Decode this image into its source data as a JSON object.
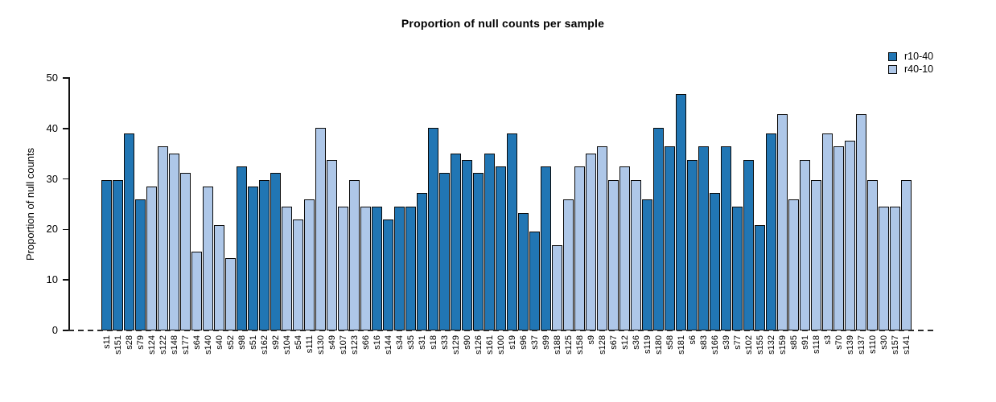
{
  "title": "Proportion of null counts per sample",
  "y_axis": {
    "label": "Proportion of null counts"
  },
  "legend": {
    "items": [
      {
        "label": "r10-40",
        "color": "#2176b4"
      },
      {
        "label": "r40-10",
        "color": "#aec7e8"
      }
    ]
  },
  "chart_data": {
    "type": "bar",
    "title": "Proportion of null counts per sample",
    "xlabel": "",
    "ylabel": "Proportion of null counts",
    "ylim": [
      0,
      50
    ],
    "yticks": [
      0,
      10,
      20,
      30,
      40,
      50
    ],
    "grid": false,
    "legend_position": "top-right",
    "baseline": {
      "y": 0,
      "style": "dashed"
    },
    "series": [
      {
        "name": "r10-40",
        "color": "#2176b4"
      },
      {
        "name": "r40-10",
        "color": "#aec7e8"
      }
    ],
    "categories": [
      "s11",
      "s151",
      "s28",
      "s79",
      "s124",
      "s122",
      "s148",
      "s177",
      "s64",
      "s140",
      "s40",
      "s52",
      "s98",
      "s51",
      "s162",
      "s92",
      "s104",
      "s54",
      "s111",
      "s130",
      "s49",
      "s107",
      "s123",
      "s66",
      "s16",
      "s144",
      "s34",
      "s35",
      "s31",
      "s18",
      "s33",
      "s129",
      "s90",
      "s126",
      "s161",
      "s100",
      "s19",
      "s96",
      "s37",
      "s99",
      "s188",
      "s125",
      "s158",
      "s9",
      "s128",
      "s67",
      "s12",
      "s36",
      "s119",
      "s180",
      "s58",
      "s181",
      "s6",
      "s83",
      "s166",
      "s39",
      "s77",
      "s102",
      "s155",
      "s132",
      "s159",
      "s85",
      "s91",
      "s118",
      "s3",
      "s70",
      "s139",
      "s137",
      "s110",
      "s30",
      "s157",
      "s141"
    ],
    "values": [
      29.8,
      29.8,
      39.0,
      25.9,
      28.5,
      36.4,
      35.0,
      31.2,
      15.6,
      28.5,
      20.8,
      14.3,
      32.5,
      28.5,
      29.8,
      31.2,
      24.5,
      22.0,
      26.0,
      40.2,
      33.8,
      24.5,
      29.8,
      24.5,
      24.5,
      22.0,
      24.5,
      24.5,
      27.3,
      40.2,
      31.2,
      35.0,
      33.7,
      31.2,
      35.0,
      32.5,
      39.0,
      23.3,
      19.6,
      32.5,
      16.9,
      26.0,
      32.5,
      35.0,
      36.4,
      29.8,
      32.5,
      29.8,
      26.0,
      40.2,
      36.4,
      46.8,
      33.7,
      36.4,
      27.3,
      36.4,
      24.5,
      33.7,
      20.8,
      39.0,
      42.8,
      26.0,
      33.7,
      29.8,
      39.0,
      36.4,
      37.6,
      42.8,
      29.8,
      24.5,
      24.5,
      29.8
    ],
    "bar_series": [
      "r10-40",
      "r10-40",
      "r10-40",
      "r10-40",
      "r40-10",
      "r40-10",
      "r40-10",
      "r40-10",
      "r40-10",
      "r40-10",
      "r40-10",
      "r40-10",
      "r10-40",
      "r10-40",
      "r10-40",
      "r10-40",
      "r40-10",
      "r40-10",
      "r40-10",
      "r40-10",
      "r40-10",
      "r40-10",
      "r40-10",
      "r40-10",
      "r10-40",
      "r10-40",
      "r10-40",
      "r10-40",
      "r10-40",
      "r10-40",
      "r10-40",
      "r10-40",
      "r10-40",
      "r10-40",
      "r10-40",
      "r10-40",
      "r10-40",
      "r10-40",
      "r10-40",
      "r10-40",
      "r40-10",
      "r40-10",
      "r40-10",
      "r40-10",
      "r40-10",
      "r40-10",
      "r40-10",
      "r40-10",
      "r10-40",
      "r10-40",
      "r10-40",
      "r10-40",
      "r10-40",
      "r10-40",
      "r10-40",
      "r10-40",
      "r10-40",
      "r10-40",
      "r10-40",
      "r10-40",
      "r40-10",
      "r40-10",
      "r40-10",
      "r40-10",
      "r40-10",
      "r40-10",
      "r40-10",
      "r40-10",
      "r40-10",
      "r40-10",
      "r40-10",
      "r40-10"
    ]
  }
}
